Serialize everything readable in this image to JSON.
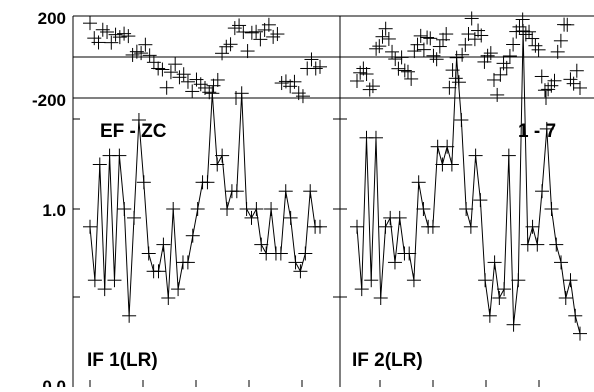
{
  "chart_data": {
    "type": "line",
    "marker": "plus",
    "colors": {
      "line": "#000000",
      "background": "#ffffff"
    },
    "top_yaxis": {
      "ticks": [
        "200",
        "-200"
      ],
      "ylim": [
        -200,
        200
      ]
    },
    "bottom_yaxis": {
      "ticks": [
        "1.0",
        "0.0"
      ],
      "ylim": [
        0,
        2
      ]
    },
    "panels": [
      {
        "label_top": "EF - ZC",
        "label_bottom": "IF 1(LR)",
        "scatter_y": [
          165,
          92,
          71,
          133,
          122,
          70,
          109,
          97,
          114,
          102,
          10,
          26,
          19,
          60,
          8,
          -26,
          -56,
          -61,
          -150,
          -74,
          -35,
          -99,
          -84,
          -121,
          -168,
          -110,
          -133,
          -151,
          -172,
          -140,
          -112,
          18,
          50,
          62,
          141,
          154,
          122,
          29,
          118,
          123,
          86,
          132,
          157,
          98,
          112,
          -127,
          -119,
          -143,
          -121,
          -176,
          -191,
          -56,
          -12,
          -56,
          -48
        ],
        "line_y": [
          0.9,
          0.6,
          1.25,
          0.55,
          1.3,
          0.6,
          1.3,
          1.0,
          0.4,
          0.95,
          1.5,
          1.15,
          0.75,
          0.65,
          0.65,
          0.8,
          0.5,
          1.0,
          0.55,
          0.7,
          0.7,
          0.85,
          1.0,
          1.15,
          1.15,
          1.65,
          1.25,
          1.3,
          1.0,
          1.1,
          1.1,
          1.65,
          1.0,
          0.95,
          1.0,
          0.8,
          0.75,
          1.0,
          0.75,
          0.75,
          1.1,
          0.95,
          0.7,
          0.65,
          0.75,
          1.1,
          0.9,
          0.9
        ]
      },
      {
        "label_top": "1 - 7",
        "label_bottom": "IF 2(LR)",
        "scatter_y": [
          -117,
          -77,
          -56,
          -83,
          -159,
          -142,
          40,
          53,
          99,
          138,
          88,
          25,
          -10,
          -57,
          -2,
          -66,
          -72,
          -107,
          29,
          60,
          103,
          36,
          95,
          91,
          6,
          -11,
          51,
          84,
          112,
          -150,
          -64,
          -104,
          -123,
          11,
          59,
          112,
          188,
          87,
          129,
          105,
          -24,
          6,
          19,
          -112,
          -185,
          -87,
          -31,
          -53,
          5,
          61,
          124,
          147,
          183,
          110,
          123,
          90,
          55,
          35,
          -95,
          -162,
          -158,
          -140,
          -116,
          25,
          79,
          158,
          157,
          -109,
          -130,
          -67,
          -151
        ],
        "line_y": [
          0.9,
          0.55,
          1.4,
          0.6,
          1.4,
          0.5,
          0.9,
          0.95,
          0.7,
          0.95,
          0.75,
          0.75,
          0.6,
          1.15,
          1.0,
          0.9,
          0.9,
          1.35,
          1.25,
          1.35,
          1.25,
          1.85,
          1.5,
          1.0,
          0.9,
          1.3,
          1.05,
          0.6,
          0.4,
          0.7,
          0.5,
          0.55,
          1.3,
          0.35,
          0.6,
          2.0,
          0.8,
          0.9,
          0.8,
          1.1,
          1.45,
          1.0,
          0.8,
          0.7,
          0.5,
          0.6,
          0.4,
          0.3
        ]
      }
    ]
  }
}
